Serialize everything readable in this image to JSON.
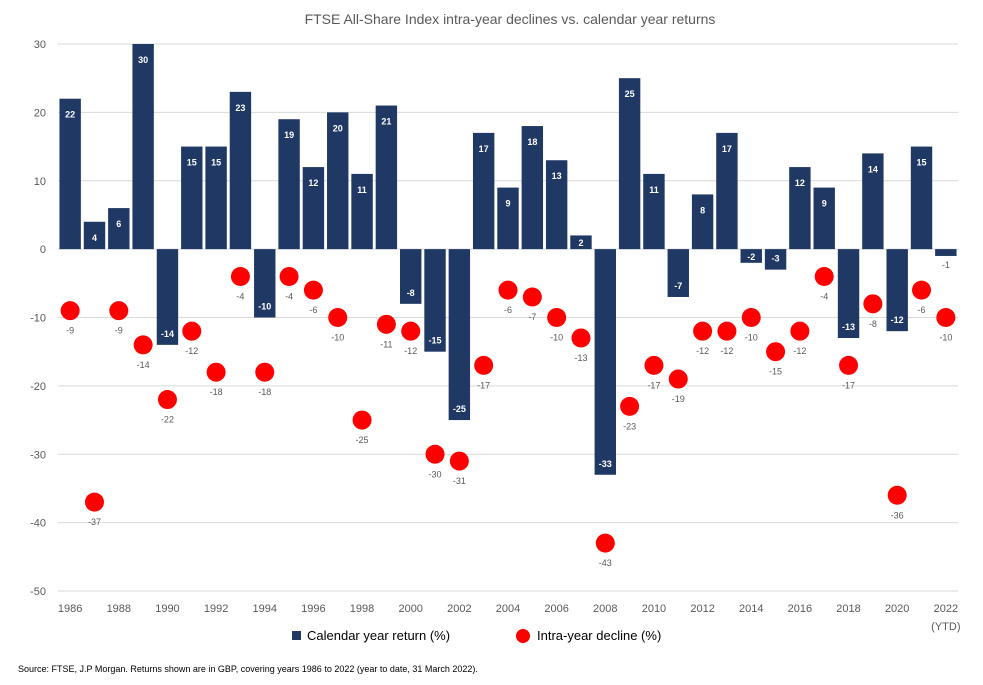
{
  "colors": {
    "bar": "#1f3864",
    "dot": "#ff0000",
    "grid": "#d9d9d9",
    "text": "#595959"
  },
  "chart_data": {
    "type": "bar",
    "title": "FTSE All-Share Index intra-year declines vs. calendar year returns",
    "xlabel": "",
    "ylabel": "",
    "ylim": [
      -50,
      30
    ],
    "yticks": [
      30,
      20,
      10,
      0,
      -10,
      -20,
      -30,
      -40,
      -50
    ],
    "grid": true,
    "legend_position": "bottom",
    "categories": [
      "1986",
      "1987",
      "1988",
      "1989",
      "1990",
      "1991",
      "1992",
      "1993",
      "1994",
      "1995",
      "1996",
      "1997",
      "1998",
      "1999",
      "2000",
      "2001",
      "2002",
      "2003",
      "2004",
      "2005",
      "2006",
      "2007",
      "2008",
      "2009",
      "2010",
      "2011",
      "2012",
      "2013",
      "2014",
      "2015",
      "2016",
      "2017",
      "2018",
      "2019",
      "2020",
      "2021",
      "2022"
    ],
    "xtick_labels": [
      "1986",
      "1988",
      "1990",
      "1992",
      "1994",
      "1996",
      "1998",
      "2000",
      "2002",
      "2004",
      "2006",
      "2008",
      "2010",
      "2012",
      "2014",
      "2016",
      "2018",
      "2020",
      "2022"
    ],
    "xtick_note": "(YTD)",
    "series": [
      {
        "name": "Calendar year return (%)",
        "kind": "bar",
        "values": [
          22,
          4,
          6,
          30,
          -14,
          15,
          15,
          23,
          -10,
          19,
          12,
          20,
          11,
          21,
          -8,
          -15,
          -25,
          17,
          9,
          18,
          13,
          2,
          -33,
          25,
          11,
          -7,
          8,
          17,
          -2,
          -3,
          12,
          9,
          -13,
          14,
          -12,
          15,
          -1
        ],
        "labels": [
          "22",
          "4",
          "6",
          "30",
          "-14",
          "15",
          "15",
          "23",
          "-10",
          "19",
          "12",
          "20",
          "11",
          "21",
          "-8",
          "-15",
          "-25",
          "17",
          "9",
          "18",
          "13",
          "2",
          "-33",
          "25",
          "11",
          "-7",
          "8",
          "17",
          "-2",
          "-3",
          "12",
          "9",
          "-13",
          "14",
          "-12",
          "15",
          "-1"
        ]
      },
      {
        "name": "Intra-year decline (%)",
        "kind": "scatter",
        "values": [
          -9,
          -37,
          -9,
          -14,
          -22,
          -12,
          -18,
          -4,
          -18,
          -4,
          -6,
          -10,
          -25,
          -11,
          -12,
          -30,
          -31,
          -17,
          -6,
          -7,
          -10,
          -13,
          -43,
          -23,
          -17,
          -19,
          -12,
          -12,
          -10,
          -15,
          -12,
          -4,
          -17,
          -8,
          -36,
          -6,
          -10
        ],
        "labels": [
          "-9",
          "-37",
          "-9",
          "-14",
          "-22",
          "-12",
          "-18",
          "-4",
          "-18",
          "-4",
          "-6",
          "-10",
          "-25",
          "-11",
          "-12",
          "-30",
          "-31",
          "-17",
          "-6",
          "-7",
          "-10",
          "-13",
          "-43",
          "-23",
          "-17",
          "-19",
          "-12",
          "-12",
          "-10",
          "-15",
          "-12",
          "-4",
          "-17",
          "-8",
          "-36",
          "-6",
          "-10"
        ]
      }
    ]
  },
  "source": "Source: FTSE, J.P Morgan. Returns shown are in GBP, covering years 1986 to 2022 (year to date, 31 March 2022)."
}
